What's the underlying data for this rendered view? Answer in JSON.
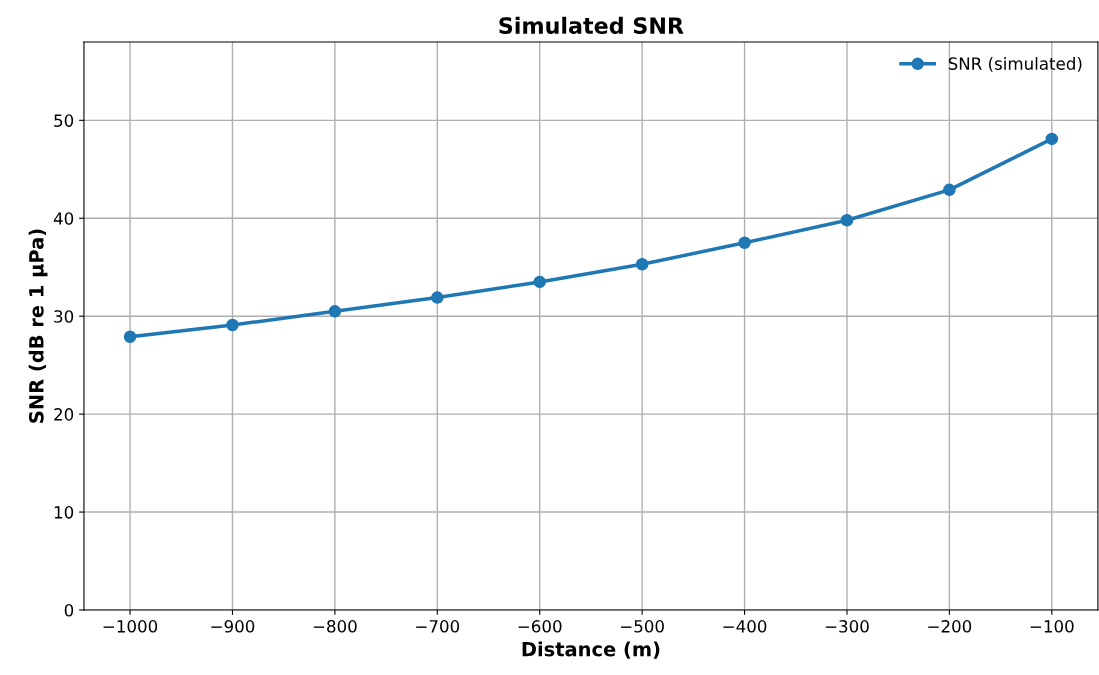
{
  "chart_data": {
    "type": "line",
    "title": "Simulated SNR",
    "xlabel": "Distance (m)",
    "ylabel": "SNR (dB re 1 µPa)",
    "x": [
      -1000,
      -900,
      -800,
      -700,
      -600,
      -500,
      -400,
      -300,
      -200,
      -100
    ],
    "series": [
      {
        "name": "SNR (simulated)",
        "color": "#1f77b4",
        "values": [
          27.9,
          29.1,
          30.5,
          31.9,
          33.5,
          35.3,
          37.5,
          39.8,
          42.9,
          48.1
        ]
      }
    ],
    "xlim": [
      -1045,
      -55
    ],
    "xticks": [
      {
        "value": -1000,
        "label": "−1000"
      },
      {
        "value": -900,
        "label": "−900"
      },
      {
        "value": -800,
        "label": "−800"
      },
      {
        "value": -700,
        "label": "−700"
      },
      {
        "value": -600,
        "label": "−600"
      },
      {
        "value": -500,
        "label": "−500"
      },
      {
        "value": -400,
        "label": "−400"
      },
      {
        "value": -300,
        "label": "−300"
      },
      {
        "value": -200,
        "label": "−200"
      },
      {
        "value": -100,
        "label": "−100"
      }
    ],
    "ylim": [
      0,
      58
    ],
    "yticks": [
      0,
      10,
      20,
      30,
      40,
      50
    ],
    "grid": true,
    "legend": "top right",
    "marker": "circle",
    "line_style": "solid"
  }
}
